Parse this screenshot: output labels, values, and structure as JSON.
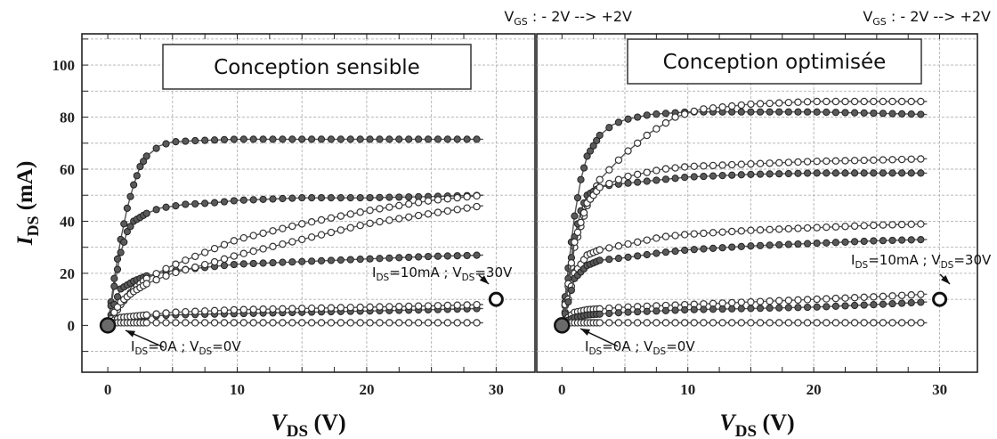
{
  "chart_data": [
    {
      "type": "scatter",
      "title": "Conception sensible",
      "header": {
        "prefix": "V",
        "sub": "GS",
        "rest": " : - 2V --> +2V"
      },
      "xlabel": {
        "main": "V",
        "sub": "DS",
        "unit": " (V)"
      },
      "ylabel": {
        "main": "I",
        "sub": "DS",
        "unit": " (mA)"
      },
      "xlim": [
        -2,
        33
      ],
      "ylim": [
        -18,
        112
      ],
      "xticks": [
        "0",
        "10",
        "20",
        "30"
      ],
      "yticks": [
        "0",
        "20",
        "40",
        "60",
        "80",
        "100"
      ],
      "grid": true,
      "series": [
        {
          "style": "filled",
          "points": [
            [
              0,
              0
            ],
            [
              0.5,
              18
            ],
            [
              1,
              33
            ],
            [
              1.5,
              45
            ],
            [
              2,
              54
            ],
            [
              2.5,
              61
            ],
            [
              3,
              65
            ],
            [
              4,
              69
            ],
            [
              5,
              70.5
            ],
            [
              7,
              71
            ],
            [
              10,
              71.5
            ],
            [
              15,
              71.5
            ],
            [
              20,
              71.5
            ],
            [
              25,
              71.5
            ],
            [
              29,
              71.5
            ]
          ]
        },
        {
          "style": "filled",
          "points": [
            [
              0,
              0
            ],
            [
              0.5,
              15
            ],
            [
              1,
              28
            ],
            [
              1.5,
              36
            ],
            [
              2,
              40
            ],
            [
              3,
              43
            ],
            [
              4,
              45
            ],
            [
              6,
              46.5
            ],
            [
              8,
              47
            ],
            [
              10,
              48
            ],
            [
              15,
              49
            ],
            [
              20,
              49
            ],
            [
              25,
              49.5
            ],
            [
              29,
              50
            ]
          ]
        },
        {
          "style": "filled",
          "points": [
            [
              0,
              0
            ],
            [
              0.5,
              8
            ],
            [
              1,
              14
            ],
            [
              2,
              17
            ],
            [
              3,
              19
            ],
            [
              5,
              21
            ],
            [
              8,
              22.5
            ],
            [
              10,
              23.5
            ],
            [
              15,
              24.5
            ],
            [
              20,
              25.5
            ],
            [
              25,
              26.5
            ],
            [
              29,
              27
            ]
          ]
        },
        {
          "style": "filled",
          "points": [
            [
              0,
              0
            ],
            [
              0.5,
              2
            ],
            [
              1,
              3
            ],
            [
              3,
              3.5
            ],
            [
              5,
              4
            ],
            [
              10,
              4.5
            ],
            [
              15,
              5
            ],
            [
              20,
              5.5
            ],
            [
              25,
              6
            ],
            [
              29,
              6.5
            ]
          ]
        },
        {
          "style": "open",
          "points": [
            [
              0,
              0
            ],
            [
              0.5,
              4
            ],
            [
              1,
              8
            ],
            [
              2,
              14
            ],
            [
              3,
              18
            ],
            [
              5,
              23
            ],
            [
              8,
              29
            ],
            [
              10,
              33
            ],
            [
              15,
              39
            ],
            [
              20,
              44
            ],
            [
              25,
              48
            ],
            [
              29,
              50
            ]
          ]
        },
        {
          "style": "open",
          "points": [
            [
              0,
              0
            ],
            [
              0.5,
              5
            ],
            [
              1,
              9
            ],
            [
              2,
              13
            ],
            [
              3,
              16
            ],
            [
              5,
              20
            ],
            [
              8,
              24
            ],
            [
              10,
              27
            ],
            [
              15,
              33
            ],
            [
              20,
              39
            ],
            [
              25,
              43
            ],
            [
              29,
              46
            ]
          ]
        },
        {
          "style": "open",
          "points": [
            [
              0,
              0
            ],
            [
              0.5,
              2
            ],
            [
              1,
              3
            ],
            [
              3,
              4
            ],
            [
              5,
              5
            ],
            [
              10,
              6
            ],
            [
              15,
              6.5
            ],
            [
              20,
              7
            ],
            [
              25,
              7.5
            ],
            [
              29,
              8
            ]
          ]
        },
        {
          "style": "open",
          "points": [
            [
              0,
              0
            ],
            [
              0.5,
              1
            ],
            [
              1,
              1
            ],
            [
              5,
              1
            ],
            [
              10,
              1
            ],
            [
              15,
              1
            ],
            [
              20,
              1
            ],
            [
              25,
              1
            ],
            [
              29,
              1
            ]
          ]
        }
      ],
      "markers": [
        {
          "label_pre": "I",
          "label_sub": "DS",
          "label_mid": "=0A ; V",
          "label_sub2": "DS",
          "label_post": "=0V",
          "point": [
            0,
            0
          ],
          "style": "filled-large"
        },
        {
          "label_pre": "I",
          "label_sub": "DS",
          "label_mid": "=10mA ; V",
          "label_sub2": "DS",
          "label_post": "=30V",
          "point": [
            30,
            10
          ],
          "style": "open-large"
        }
      ]
    },
    {
      "type": "scatter",
      "title": "Conception optimisée",
      "header": {
        "prefix": "V",
        "sub": "GS",
        "rest": " : - 2V --> +2V"
      },
      "xlabel": {
        "main": "V",
        "sub": "DS",
        "unit": " (V)"
      },
      "ylabel": {
        "main": "",
        "sub": "",
        "unit": ""
      },
      "xlim": [
        -2,
        33
      ],
      "ylim": [
        -18,
        112
      ],
      "xticks": [
        "0",
        "10",
        "20",
        "30"
      ],
      "yticks": [],
      "grid": true,
      "series": [
        {
          "style": "filled",
          "points": [
            [
              0,
              0
            ],
            [
              0.5,
              22
            ],
            [
              1,
              42
            ],
            [
              1.5,
              56
            ],
            [
              2,
              65
            ],
            [
              3,
              73
            ],
            [
              4,
              77
            ],
            [
              5,
              79
            ],
            [
              7,
              81
            ],
            [
              10,
              82
            ],
            [
              15,
              82
            ],
            [
              20,
              82
            ],
            [
              25,
              81.5
            ],
            [
              29,
              81
            ]
          ]
        },
        {
          "style": "open",
          "points": [
            [
              0,
              0
            ],
            [
              0.5,
              15
            ],
            [
              1,
              30
            ],
            [
              2,
              46
            ],
            [
              3,
              56
            ],
            [
              5,
              66
            ],
            [
              7,
              74
            ],
            [
              9,
              80
            ],
            [
              11,
              83
            ],
            [
              15,
              85
            ],
            [
              20,
              86
            ],
            [
              25,
              86
            ],
            [
              29,
              86
            ]
          ]
        },
        {
          "style": "filled",
          "points": [
            [
              0,
              0
            ],
            [
              0.5,
              18
            ],
            [
              1,
              34
            ],
            [
              1.5,
              44
            ],
            [
              2,
              50
            ],
            [
              3,
              53
            ],
            [
              4,
              54
            ],
            [
              6,
              55
            ],
            [
              10,
              57
            ],
            [
              15,
              58
            ],
            [
              20,
              58.5
            ],
            [
              25,
              58.5
            ],
            [
              29,
              58.5
            ]
          ]
        },
        {
          "style": "open",
          "points": [
            [
              0,
              0
            ],
            [
              0.5,
              16
            ],
            [
              1,
              32
            ],
            [
              2,
              47
            ],
            [
              3,
              53
            ],
            [
              5,
              57
            ],
            [
              8,
              60
            ],
            [
              10,
              61
            ],
            [
              15,
              62
            ],
            [
              20,
              63
            ],
            [
              25,
              63.5
            ],
            [
              29,
              64
            ]
          ]
        },
        {
          "style": "open",
          "points": [
            [
              0,
              0
            ],
            [
              0.5,
              10
            ],
            [
              1,
              20
            ],
            [
              2,
              27
            ],
            [
              3,
              29
            ],
            [
              5,
              31
            ],
            [
              8,
              34
            ],
            [
              10,
              35
            ],
            [
              15,
              36.5
            ],
            [
              20,
              37.5
            ],
            [
              25,
              38.5
            ],
            [
              29,
              39
            ]
          ]
        },
        {
          "style": "filled",
          "points": [
            [
              0,
              0
            ],
            [
              0.5,
              9
            ],
            [
              1,
              18
            ],
            [
              2,
              23
            ],
            [
              3,
              25
            ],
            [
              5,
              26
            ],
            [
              8,
              28
            ],
            [
              10,
              29
            ],
            [
              15,
              30.5
            ],
            [
              20,
              31.5
            ],
            [
              25,
              32.5
            ],
            [
              29,
              33
            ]
          ]
        },
        {
          "style": "open",
          "points": [
            [
              0,
              0
            ],
            [
              0.5,
              3
            ],
            [
              1,
              5
            ],
            [
              2,
              6
            ],
            [
              5,
              7
            ],
            [
              10,
              8
            ],
            [
              15,
              9
            ],
            [
              20,
              10
            ],
            [
              25,
              11
            ],
            [
              29,
              12
            ]
          ]
        },
        {
          "style": "filled",
          "points": [
            [
              0,
              0
            ],
            [
              0.5,
              2
            ],
            [
              1,
              3
            ],
            [
              2,
              4
            ],
            [
              5,
              5
            ],
            [
              10,
              6
            ],
            [
              15,
              6.5
            ],
            [
              20,
              7
            ],
            [
              25,
              8
            ],
            [
              29,
              9
            ]
          ]
        },
        {
          "style": "open",
          "points": [
            [
              0,
              0
            ],
            [
              0.5,
              1
            ],
            [
              1,
              1
            ],
            [
              5,
              1
            ],
            [
              10,
              1
            ],
            [
              15,
              1
            ],
            [
              20,
              1
            ],
            [
              25,
              1
            ],
            [
              29,
              1
            ]
          ]
        }
      ],
      "markers": [
        {
          "label_pre": "I",
          "label_sub": "DS",
          "label_mid": "=0A ; V",
          "label_sub2": "DS",
          "label_post": "=0V",
          "point": [
            0,
            0
          ],
          "style": "filled-large"
        },
        {
          "label_pre": "I",
          "label_sub": "DS",
          "label_mid": "=10mA ; V",
          "label_sub2": "DS",
          "label_post": "=30V",
          "point": [
            30,
            10
          ],
          "style": "open-large"
        }
      ]
    }
  ],
  "colors": {
    "filled": "#5a5a5a",
    "filled_stroke": "#222222",
    "open_fill": "#ffffff",
    "open_stroke": "#333333",
    "line": "#555555",
    "grid": "#b0b0b0"
  }
}
